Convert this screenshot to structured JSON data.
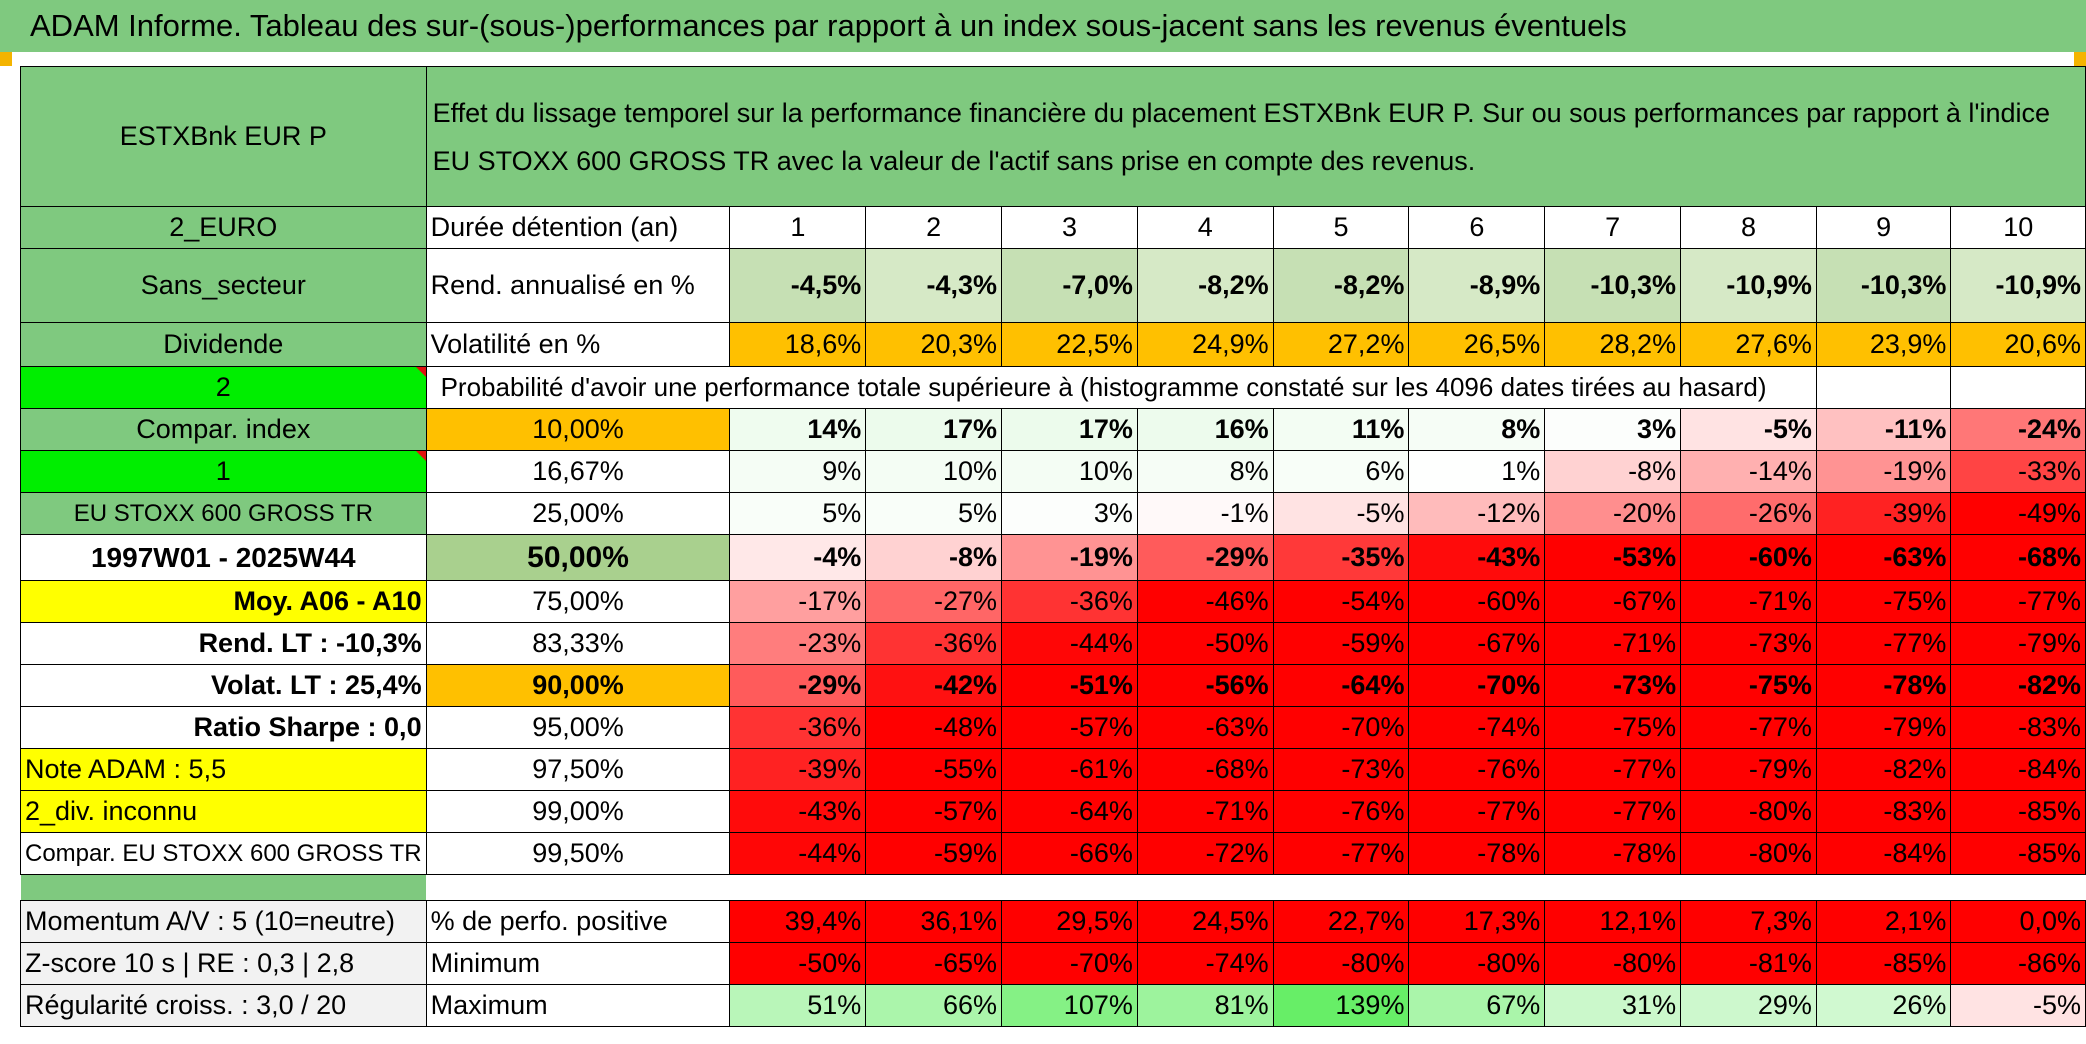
{
  "title": "ADAM Informe. Tableau des sur-(sous-)performances par rapport à un index sous-jacent sans les revenus éventuels",
  "header": {
    "fund_name": "ESTXBnk EUR P",
    "description": "Effet du lissage temporel sur la performance financière du placement ESTXBnk EUR P. Sur ou sous performances par rapport à l'indice EU STOXX 600 GROSS TR avec la valeur de l'actif sans prise en compte des revenus."
  },
  "left_labels": {
    "currency": "2_EURO",
    "sector": "Sans_secteur",
    "dividend": "Dividende",
    "mode": "2",
    "compar_index": "Compar. index",
    "index_flag": "1",
    "index_name": "EU STOXX 600 GROSS TR",
    "period": "1997W01 - 2025W44",
    "moy": "Moy. A06 - A10",
    "rend_lt": "Rend. LT :   -10,3%",
    "volat_lt": "Volat. LT :   25,4%",
    "sharpe": "Ratio Sharpe :    0,0",
    "note": "Note ADAM : 5,5",
    "div": "2_div. inconnu",
    "compar_full": "Compar. EU STOXX 600 GROSS TR",
    "momentum": "Momentum A/V : 5 (10=neutre)",
    "zscore": "Z-score 10 s | RE : 0,3 | 2,8",
    "regularite": "Régularité croiss. : 3,0 / 20"
  },
  "row_labels": {
    "duration": "Durée détention (an)",
    "rend": "Rend. annualisé en %",
    "volat": "Volatilité en %",
    "proba": "Probabilité d'avoir une performance totale supérieure à (histogramme constaté sur les 4096 dates tirées au hasard)",
    "positive": "% de perfo. positive",
    "minimum": "Minimum",
    "maximum": "Maximum"
  },
  "years": [
    "1",
    "2",
    "3",
    "4",
    "5",
    "6",
    "7",
    "8",
    "9",
    "10"
  ],
  "rend": [
    "-4,5%",
    "-4,3%",
    "-7,0%",
    "-8,2%",
    "-8,2%",
    "-8,9%",
    "-10,3%",
    "-10,9%",
    "-10,3%",
    "-10,9%"
  ],
  "volat": [
    "18,6%",
    "20,3%",
    "22,5%",
    "24,9%",
    "27,2%",
    "26,5%",
    "28,2%",
    "27,6%",
    "23,9%",
    "20,6%"
  ],
  "quantiles": [
    {
      "q": "10,00%",
      "vals": [
        "14%",
        "17%",
        "17%",
        "16%",
        "11%",
        "8%",
        "3%",
        "-5%",
        "-11%",
        "-24%"
      ]
    },
    {
      "q": "16,67%",
      "vals": [
        "9%",
        "10%",
        "10%",
        "8%",
        "6%",
        "1%",
        "-8%",
        "-14%",
        "-19%",
        "-33%"
      ]
    },
    {
      "q": "25,00%",
      "vals": [
        "5%",
        "5%",
        "3%",
        "-1%",
        "-5%",
        "-12%",
        "-20%",
        "-26%",
        "-39%",
        "-49%"
      ]
    },
    {
      "q": "50,00%",
      "vals": [
        "-4%",
        "-8%",
        "-19%",
        "-29%",
        "-35%",
        "-43%",
        "-53%",
        "-60%",
        "-63%",
        "-68%"
      ]
    },
    {
      "q": "75,00%",
      "vals": [
        "-17%",
        "-27%",
        "-36%",
        "-46%",
        "-54%",
        "-60%",
        "-67%",
        "-71%",
        "-75%",
        "-77%"
      ]
    },
    {
      "q": "83,33%",
      "vals": [
        "-23%",
        "-36%",
        "-44%",
        "-50%",
        "-59%",
        "-67%",
        "-71%",
        "-73%",
        "-77%",
        "-79%"
      ]
    },
    {
      "q": "90,00%",
      "vals": [
        "-29%",
        "-42%",
        "-51%",
        "-56%",
        "-64%",
        "-70%",
        "-73%",
        "-75%",
        "-78%",
        "-82%"
      ]
    },
    {
      "q": "95,00%",
      "vals": [
        "-36%",
        "-48%",
        "-57%",
        "-63%",
        "-70%",
        "-74%",
        "-75%",
        "-77%",
        "-79%",
        "-83%"
      ]
    },
    {
      "q": "97,50%",
      "vals": [
        "-39%",
        "-55%",
        "-61%",
        "-68%",
        "-73%",
        "-76%",
        "-77%",
        "-79%",
        "-82%",
        "-84%"
      ]
    },
    {
      "q": "99,00%",
      "vals": [
        "-43%",
        "-57%",
        "-64%",
        "-71%",
        "-76%",
        "-77%",
        "-77%",
        "-80%",
        "-83%",
        "-85%"
      ]
    },
    {
      "q": "99,50%",
      "vals": [
        "-44%",
        "-59%",
        "-66%",
        "-72%",
        "-77%",
        "-78%",
        "-78%",
        "-80%",
        "-84%",
        "-85%"
      ]
    }
  ],
  "positive": [
    "39,4%",
    "36,1%",
    "29,5%",
    "24,5%",
    "22,7%",
    "17,3%",
    "12,1%",
    "7,3%",
    "2,1%",
    "0,0%"
  ],
  "minimum": [
    "-50%",
    "-65%",
    "-70%",
    "-74%",
    "-80%",
    "-80%",
    "-80%",
    "-81%",
    "-85%",
    "-86%"
  ],
  "maximum": [
    "51%",
    "66%",
    "107%",
    "81%",
    "139%",
    "67%",
    "31%",
    "29%",
    "26%",
    "-5%"
  ],
  "colors": {
    "title_green": "#7fc97f",
    "bright_green": "#00ee00",
    "orange": "#ffc000",
    "yellow": "#ffff00",
    "pale_green": "#c6e0b4",
    "red_text": "#e01010"
  }
}
